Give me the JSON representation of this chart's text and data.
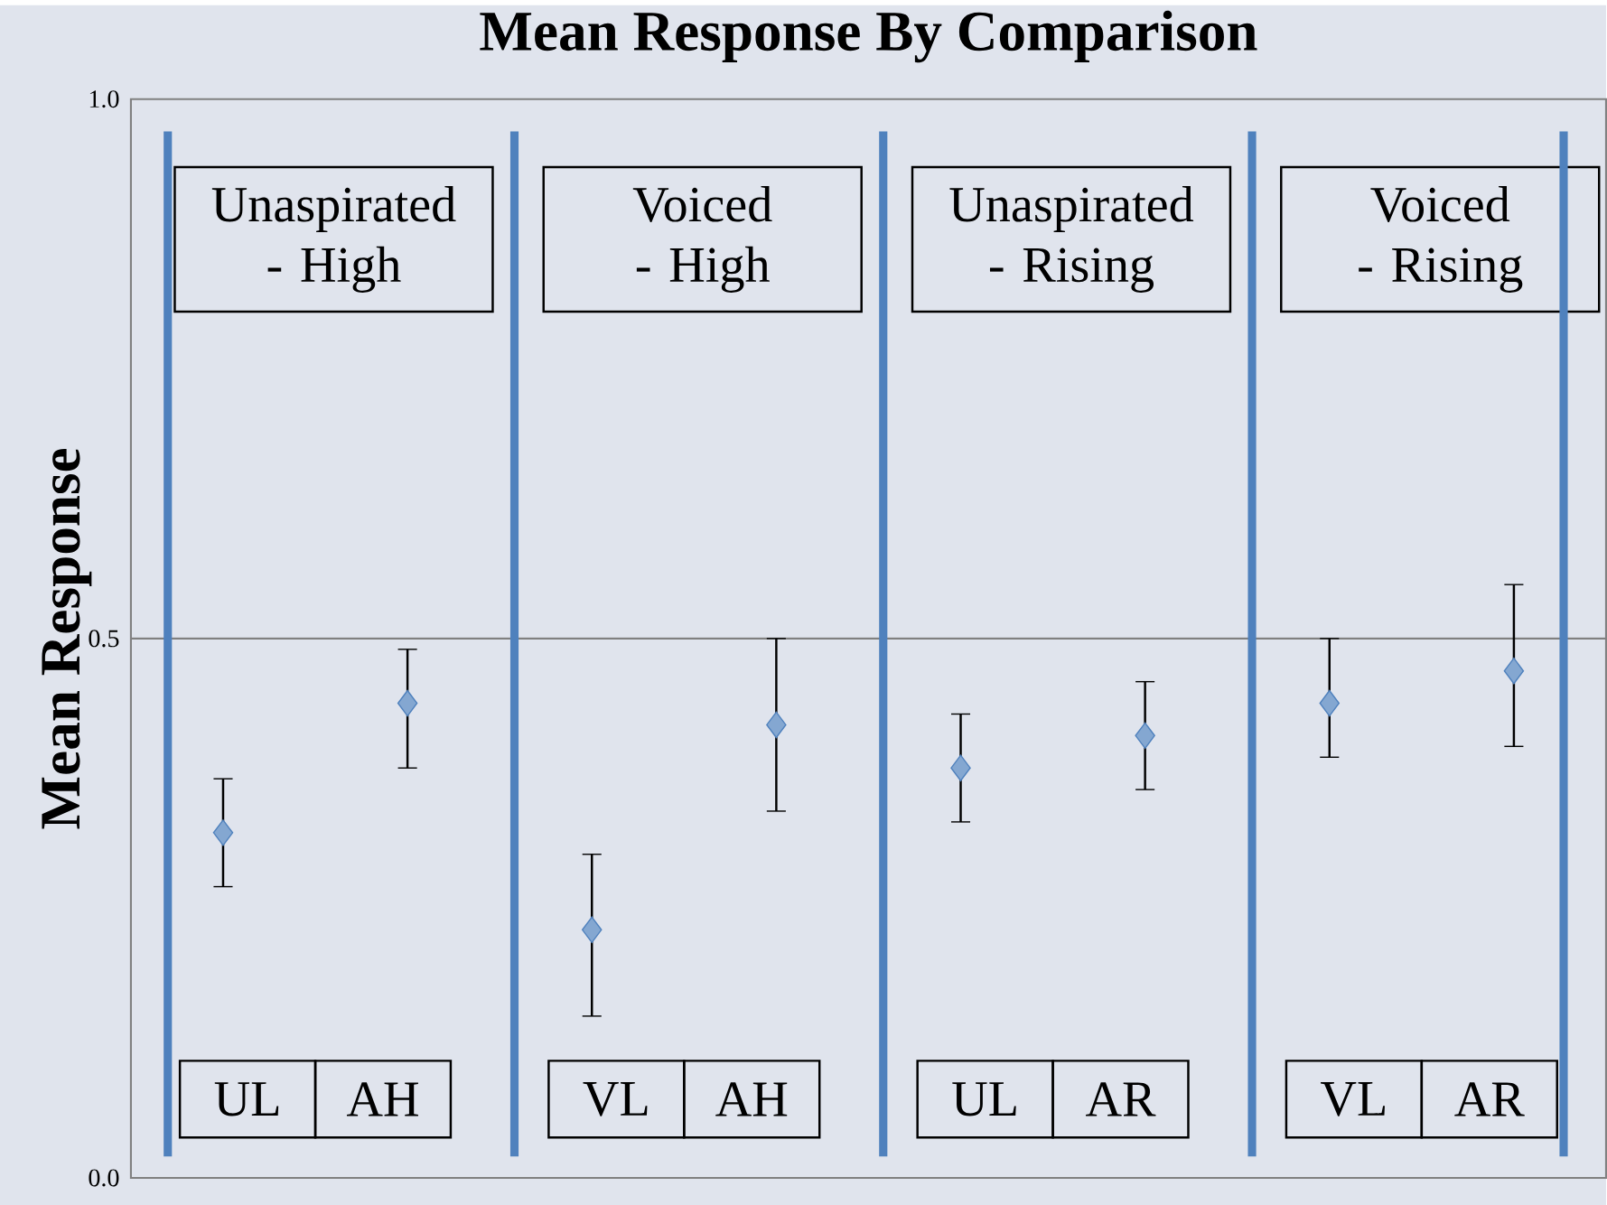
{
  "chart_data": {
    "type": "scatter",
    "title": "Mean Response By Comparison",
    "ylabel": "Mean Response",
    "categories": [
      "UL",
      "AH",
      "VL",
      "AH",
      "UL",
      "AR",
      "VL",
      "AR"
    ],
    "series": [
      {
        "color": "#4f81bd",
        "values": [
          0.32,
          0.44,
          0.23,
          0.42,
          0.38,
          0.41,
          0.44,
          0.47
        ],
        "errors": [
          [
            0.27,
            0.37
          ],
          [
            0.38,
            0.49
          ],
          [
            0.15,
            0.3
          ],
          [
            0.34,
            0.5
          ],
          [
            0.33,
            0.43
          ],
          [
            0.36,
            0.46
          ],
          [
            0.39,
            0.5
          ],
          [
            0.4,
            0.55
          ]
        ]
      }
    ],
    "ylim": [
      0,
      1
    ],
    "yticks": [
      {
        "value": 0,
        "label": "0.0"
      },
      {
        "value": 0.5,
        "label": "0.5"
      },
      {
        "value": 1,
        "label": "1.0"
      }
    ],
    "marker": "diamond",
    "ref_lines": [
      {
        "axis": "y",
        "value": 0.5,
        "color": "#808080"
      }
    ],
    "annotations": [
      "Unaspirated - High",
      "Voiced - High",
      "Unaspirated - Rising",
      "Voiced - Rising"
    ]
  }
}
